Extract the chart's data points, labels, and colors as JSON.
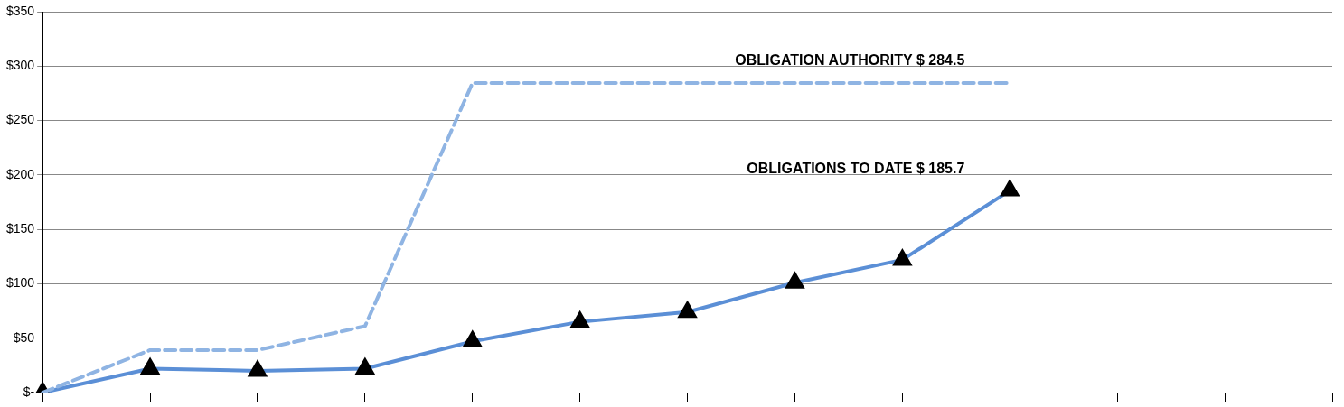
{
  "chart_data": {
    "type": "line",
    "categories": [
      null,
      null,
      null,
      null,
      null,
      null,
      null,
      null,
      null,
      null,
      null,
      null,
      null
    ],
    "series": [
      {
        "color": "#8fb4e3",
        "line_style": "dashed",
        "marker": "none",
        "values": [
          0,
          39,
          39,
          61,
          284.5,
          284.5,
          284.5,
          284.5,
          284.5,
          284.5,
          null,
          null,
          null
        ]
      },
      {
        "color": "#5b8fd6",
        "line_style": "solid",
        "marker": "triangle",
        "values": [
          0,
          22,
          20,
          22,
          47,
          65,
          74,
          101,
          122,
          185.7,
          null,
          null,
          null
        ]
      }
    ],
    "annotations": [
      "OBLIGATION AUTHORITY $ 284.5",
      "OBLIGATIONS TO DATE $ 185.7"
    ],
    "ylim": [
      0,
      350
    ],
    "yticks": [
      {
        "value": 0,
        "label": "$-"
      },
      {
        "value": 50,
        "label": "$50"
      },
      {
        "value": 100,
        "label": "$100"
      },
      {
        "value": 150,
        "label": "$150"
      },
      {
        "value": 200,
        "label": "$200"
      },
      {
        "value": 250,
        "label": "$250"
      },
      {
        "value": 300,
        "label": "$300"
      },
      {
        "value": 350,
        "label": "$350"
      }
    ],
    "grid": "y",
    "tick_labels": "y",
    "legend": false
  }
}
